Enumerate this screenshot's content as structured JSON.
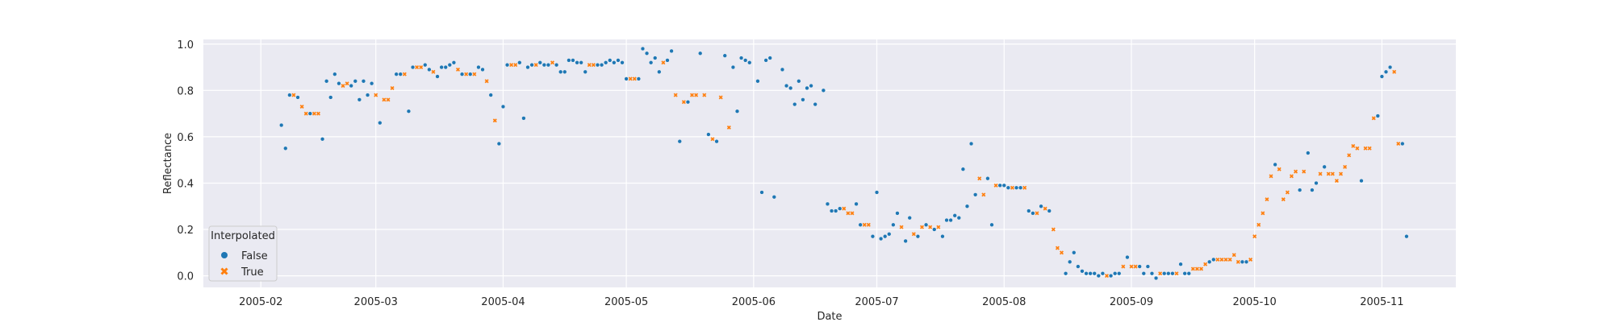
{
  "chart_data": {
    "type": "scatter",
    "title": "",
    "xlabel": "Date",
    "ylabel": "Reflectance",
    "x_ticks": [
      "2005-02",
      "2005-03",
      "2005-04",
      "2005-05",
      "2005-06",
      "2005-07",
      "2005-08",
      "2005-09",
      "2005-10",
      "2005-11"
    ],
    "x_tick_dates": [
      "2005-02-01",
      "2005-03-01",
      "2005-04-01",
      "2005-05-01",
      "2005-06-01",
      "2005-07-01",
      "2005-08-01",
      "2005-09-01",
      "2005-10-01",
      "2005-11-01"
    ],
    "y_ticks": [
      "0.0",
      "0.2",
      "0.4",
      "0.6",
      "0.8",
      "1.0"
    ],
    "y_tick_values": [
      0.0,
      0.2,
      0.4,
      0.6,
      0.8,
      1.0
    ],
    "xlim": [
      "2005-01-18",
      "2005-11-19"
    ],
    "ylim": [
      -0.05,
      1.02
    ],
    "grid": true,
    "background": "#eaeaf2",
    "legend": {
      "title": "Interpolated",
      "placement": "lower-left",
      "entries": [
        {
          "label": "False",
          "marker": "circle",
          "color": "#1f77b4"
        },
        {
          "label": "True",
          "marker": "x",
          "color": "#ff7f0e"
        }
      ]
    },
    "series": [
      {
        "name": "False",
        "marker": "circle",
        "color": "#1f77b4",
        "points": [
          [
            "2005-02-06",
            0.65
          ],
          [
            "2005-02-07",
            0.55
          ],
          [
            "2005-02-08",
            0.78
          ],
          [
            "2005-02-10",
            0.77
          ],
          [
            "2005-02-13",
            0.7
          ],
          [
            "2005-02-16",
            0.59
          ],
          [
            "2005-02-17",
            0.84
          ],
          [
            "2005-02-18",
            0.77
          ],
          [
            "2005-02-19",
            0.87
          ],
          [
            "2005-02-20",
            0.83
          ],
          [
            "2005-02-23",
            0.82
          ],
          [
            "2005-02-24",
            0.84
          ],
          [
            "2005-02-25",
            0.76
          ],
          [
            "2005-02-26",
            0.84
          ],
          [
            "2005-02-27",
            0.78
          ],
          [
            "2005-02-28",
            0.83
          ],
          [
            "2005-03-02",
            0.66
          ],
          [
            "2005-03-06",
            0.87
          ],
          [
            "2005-03-07",
            0.87
          ],
          [
            "2005-03-09",
            0.71
          ],
          [
            "2005-03-10",
            0.9
          ],
          [
            "2005-03-13",
            0.91
          ],
          [
            "2005-03-14",
            0.89
          ],
          [
            "2005-03-16",
            0.86
          ],
          [
            "2005-03-17",
            0.9
          ],
          [
            "2005-03-18",
            0.9
          ],
          [
            "2005-03-19",
            0.91
          ],
          [
            "2005-03-20",
            0.92
          ],
          [
            "2005-03-22",
            0.87
          ],
          [
            "2005-03-24",
            0.87
          ],
          [
            "2005-03-26",
            0.9
          ],
          [
            "2005-03-27",
            0.89
          ],
          [
            "2005-03-29",
            0.78
          ],
          [
            "2005-03-31",
            0.57
          ],
          [
            "2005-04-01",
            0.73
          ],
          [
            "2005-04-02",
            0.91
          ],
          [
            "2005-04-05",
            0.92
          ],
          [
            "2005-04-06",
            0.68
          ],
          [
            "2005-04-07",
            0.9
          ],
          [
            "2005-04-08",
            0.91
          ],
          [
            "2005-04-10",
            0.92
          ],
          [
            "2005-04-11",
            0.91
          ],
          [
            "2005-04-12",
            0.91
          ],
          [
            "2005-04-14",
            0.91
          ],
          [
            "2005-04-15",
            0.88
          ],
          [
            "2005-04-16",
            0.88
          ],
          [
            "2005-04-17",
            0.93
          ],
          [
            "2005-04-18",
            0.93
          ],
          [
            "2005-04-19",
            0.92
          ],
          [
            "2005-04-20",
            0.92
          ],
          [
            "2005-04-21",
            0.88
          ],
          [
            "2005-04-24",
            0.91
          ],
          [
            "2005-04-25",
            0.91
          ],
          [
            "2005-04-26",
            0.92
          ],
          [
            "2005-04-27",
            0.93
          ],
          [
            "2005-04-28",
            0.92
          ],
          [
            "2005-04-29",
            0.93
          ],
          [
            "2005-04-30",
            0.92
          ],
          [
            "2005-05-01",
            0.85
          ],
          [
            "2005-05-04",
            0.85
          ],
          [
            "2005-05-05",
            0.98
          ],
          [
            "2005-05-06",
            0.96
          ],
          [
            "2005-05-07",
            0.92
          ],
          [
            "2005-05-08",
            0.94
          ],
          [
            "2005-05-09",
            0.88
          ],
          [
            "2005-05-11",
            0.93
          ],
          [
            "2005-05-12",
            0.97
          ],
          [
            "2005-05-14",
            0.58
          ],
          [
            "2005-05-16",
            0.75
          ],
          [
            "2005-05-19",
            0.96
          ],
          [
            "2005-05-21",
            0.61
          ],
          [
            "2005-05-23",
            0.58
          ],
          [
            "2005-05-25",
            0.95
          ],
          [
            "2005-05-27",
            0.9
          ],
          [
            "2005-05-28",
            0.71
          ],
          [
            "2005-05-29",
            0.94
          ],
          [
            "2005-05-30",
            0.93
          ],
          [
            "2005-05-31",
            0.92
          ],
          [
            "2005-06-02",
            0.84
          ],
          [
            "2005-06-03",
            0.36
          ],
          [
            "2005-06-04",
            0.93
          ],
          [
            "2005-06-05",
            0.94
          ],
          [
            "2005-06-06",
            0.34
          ],
          [
            "2005-06-08",
            0.89
          ],
          [
            "2005-06-09",
            0.82
          ],
          [
            "2005-06-10",
            0.81
          ],
          [
            "2005-06-11",
            0.74
          ],
          [
            "2005-06-12",
            0.84
          ],
          [
            "2005-06-13",
            0.76
          ],
          [
            "2005-06-14",
            0.81
          ],
          [
            "2005-06-15",
            0.82
          ],
          [
            "2005-06-16",
            0.74
          ],
          [
            "2005-06-18",
            0.8
          ],
          [
            "2005-06-19",
            0.31
          ],
          [
            "2005-06-20",
            0.28
          ],
          [
            "2005-06-21",
            0.28
          ],
          [
            "2005-06-22",
            0.29
          ],
          [
            "2005-06-26",
            0.31
          ],
          [
            "2005-06-27",
            0.22
          ],
          [
            "2005-06-30",
            0.17
          ],
          [
            "2005-07-01",
            0.36
          ],
          [
            "2005-07-02",
            0.16
          ],
          [
            "2005-07-03",
            0.17
          ],
          [
            "2005-07-04",
            0.18
          ],
          [
            "2005-07-05",
            0.22
          ],
          [
            "2005-07-06",
            0.27
          ],
          [
            "2005-07-08",
            0.15
          ],
          [
            "2005-07-09",
            0.25
          ],
          [
            "2005-07-11",
            0.17
          ],
          [
            "2005-07-13",
            0.22
          ],
          [
            "2005-07-15",
            0.2
          ],
          [
            "2005-07-17",
            0.17
          ],
          [
            "2005-07-18",
            0.24
          ],
          [
            "2005-07-19",
            0.24
          ],
          [
            "2005-07-20",
            0.26
          ],
          [
            "2005-07-21",
            0.25
          ],
          [
            "2005-07-22",
            0.46
          ],
          [
            "2005-07-23",
            0.3
          ],
          [
            "2005-07-24",
            0.57
          ],
          [
            "2005-07-25",
            0.35
          ],
          [
            "2005-07-28",
            0.42
          ],
          [
            "2005-07-29",
            0.22
          ],
          [
            "2005-07-31",
            0.39
          ],
          [
            "2005-08-01",
            0.39
          ],
          [
            "2005-08-02",
            0.38
          ],
          [
            "2005-08-04",
            0.38
          ],
          [
            "2005-08-05",
            0.38
          ],
          [
            "2005-08-07",
            0.28
          ],
          [
            "2005-08-08",
            0.27
          ],
          [
            "2005-08-10",
            0.3
          ],
          [
            "2005-08-12",
            0.28
          ],
          [
            "2005-08-16",
            0.01
          ],
          [
            "2005-08-17",
            0.06
          ],
          [
            "2005-08-18",
            0.1
          ],
          [
            "2005-08-19",
            0.04
          ],
          [
            "2005-08-20",
            0.02
          ],
          [
            "2005-08-21",
            0.01
          ],
          [
            "2005-08-22",
            0.01
          ],
          [
            "2005-08-23",
            0.01
          ],
          [
            "2005-08-24",
            0.0
          ],
          [
            "2005-08-25",
            0.01
          ],
          [
            "2005-08-27",
            0.0
          ],
          [
            "2005-08-28",
            0.01
          ],
          [
            "2005-08-29",
            0.01
          ],
          [
            "2005-08-31",
            0.08
          ],
          [
            "2005-09-03",
            0.04
          ],
          [
            "2005-09-04",
            0.01
          ],
          [
            "2005-09-05",
            0.04
          ],
          [
            "2005-09-06",
            0.01
          ],
          [
            "2005-09-07",
            -0.01
          ],
          [
            "2005-09-09",
            0.01
          ],
          [
            "2005-09-10",
            0.01
          ],
          [
            "2005-09-11",
            0.01
          ],
          [
            "2005-09-13",
            0.05
          ],
          [
            "2005-09-14",
            0.01
          ],
          [
            "2005-09-15",
            0.01
          ],
          [
            "2005-09-20",
            0.06
          ],
          [
            "2005-09-21",
            0.07
          ],
          [
            "2005-09-28",
            0.06
          ],
          [
            "2005-09-29",
            0.06
          ],
          [
            "2005-10-06",
            0.48
          ],
          [
            "2005-10-12",
            0.37
          ],
          [
            "2005-10-14",
            0.53
          ],
          [
            "2005-10-15",
            0.37
          ],
          [
            "2005-10-16",
            0.4
          ],
          [
            "2005-10-18",
            0.47
          ],
          [
            "2005-10-27",
            0.41
          ],
          [
            "2005-10-31",
            0.69
          ],
          [
            "2005-11-01",
            0.86
          ],
          [
            "2005-11-02",
            0.88
          ],
          [
            "2005-11-03",
            0.9
          ],
          [
            "2005-11-06",
            0.57
          ],
          [
            "2005-11-07",
            0.17
          ]
        ]
      },
      {
        "name": "True",
        "marker": "x",
        "color": "#ff7f0e",
        "points": [
          [
            "2005-02-09",
            0.78
          ],
          [
            "2005-02-11",
            0.73
          ],
          [
            "2005-02-12",
            0.7
          ],
          [
            "2005-02-14",
            0.7
          ],
          [
            "2005-02-15",
            0.7
          ],
          [
            "2005-02-21",
            0.82
          ],
          [
            "2005-02-22",
            0.83
          ],
          [
            "2005-03-01",
            0.78
          ],
          [
            "2005-03-03",
            0.76
          ],
          [
            "2005-03-04",
            0.76
          ],
          [
            "2005-03-05",
            0.81
          ],
          [
            "2005-03-08",
            0.87
          ],
          [
            "2005-03-11",
            0.9
          ],
          [
            "2005-03-12",
            0.9
          ],
          [
            "2005-03-15",
            0.88
          ],
          [
            "2005-03-21",
            0.89
          ],
          [
            "2005-03-23",
            0.87
          ],
          [
            "2005-03-25",
            0.87
          ],
          [
            "2005-03-28",
            0.84
          ],
          [
            "2005-03-30",
            0.67
          ],
          [
            "2005-04-03",
            0.91
          ],
          [
            "2005-04-04",
            0.91
          ],
          [
            "2005-04-09",
            0.91
          ],
          [
            "2005-04-13",
            0.92
          ],
          [
            "2005-04-22",
            0.91
          ],
          [
            "2005-04-23",
            0.91
          ],
          [
            "2005-05-02",
            0.85
          ],
          [
            "2005-05-03",
            0.85
          ],
          [
            "2005-05-10",
            0.92
          ],
          [
            "2005-05-13",
            0.78
          ],
          [
            "2005-05-15",
            0.75
          ],
          [
            "2005-05-17",
            0.78
          ],
          [
            "2005-05-18",
            0.78
          ],
          [
            "2005-05-20",
            0.78
          ],
          [
            "2005-05-22",
            0.59
          ],
          [
            "2005-05-24",
            0.77
          ],
          [
            "2005-05-26",
            0.64
          ],
          [
            "2005-06-23",
            0.29
          ],
          [
            "2005-06-24",
            0.27
          ],
          [
            "2005-06-25",
            0.27
          ],
          [
            "2005-06-28",
            0.22
          ],
          [
            "2005-06-29",
            0.22
          ],
          [
            "2005-07-07",
            0.21
          ],
          [
            "2005-07-10",
            0.18
          ],
          [
            "2005-07-12",
            0.21
          ],
          [
            "2005-07-14",
            0.21
          ],
          [
            "2005-07-16",
            0.21
          ],
          [
            "2005-07-26",
            0.42
          ],
          [
            "2005-07-27",
            0.35
          ],
          [
            "2005-07-30",
            0.39
          ],
          [
            "2005-08-03",
            0.38
          ],
          [
            "2005-08-06",
            0.38
          ],
          [
            "2005-08-09",
            0.27
          ],
          [
            "2005-08-11",
            0.29
          ],
          [
            "2005-08-13",
            0.2
          ],
          [
            "2005-08-14",
            0.12
          ],
          [
            "2005-08-15",
            0.1
          ],
          [
            "2005-08-26",
            0.0
          ],
          [
            "2005-08-30",
            0.04
          ],
          [
            "2005-09-01",
            0.04
          ],
          [
            "2005-09-02",
            0.04
          ],
          [
            "2005-09-08",
            0.01
          ],
          [
            "2005-09-12",
            0.01
          ],
          [
            "2005-09-16",
            0.03
          ],
          [
            "2005-09-17",
            0.03
          ],
          [
            "2005-09-18",
            0.03
          ],
          [
            "2005-09-19",
            0.05
          ],
          [
            "2005-09-22",
            0.07
          ],
          [
            "2005-09-23",
            0.07
          ],
          [
            "2005-09-24",
            0.07
          ],
          [
            "2005-09-25",
            0.07
          ],
          [
            "2005-09-26",
            0.09
          ],
          [
            "2005-09-27",
            0.06
          ],
          [
            "2005-09-30",
            0.07
          ],
          [
            "2005-10-01",
            0.17
          ],
          [
            "2005-10-02",
            0.22
          ],
          [
            "2005-10-03",
            0.27
          ],
          [
            "2005-10-04",
            0.33
          ],
          [
            "2005-10-05",
            0.43
          ],
          [
            "2005-10-07",
            0.46
          ],
          [
            "2005-10-08",
            0.33
          ],
          [
            "2005-10-09",
            0.36
          ],
          [
            "2005-10-10",
            0.43
          ],
          [
            "2005-10-11",
            0.45
          ],
          [
            "2005-10-13",
            0.45
          ],
          [
            "2005-10-17",
            0.44
          ],
          [
            "2005-10-19",
            0.44
          ],
          [
            "2005-10-20",
            0.44
          ],
          [
            "2005-10-21",
            0.41
          ],
          [
            "2005-10-22",
            0.44
          ],
          [
            "2005-10-23",
            0.47
          ],
          [
            "2005-10-24",
            0.52
          ],
          [
            "2005-10-25",
            0.56
          ],
          [
            "2005-10-26",
            0.55
          ],
          [
            "2005-10-28",
            0.55
          ],
          [
            "2005-10-29",
            0.55
          ],
          [
            "2005-10-30",
            0.68
          ],
          [
            "2005-11-04",
            0.88
          ],
          [
            "2005-11-05",
            0.57
          ]
        ]
      }
    ]
  }
}
